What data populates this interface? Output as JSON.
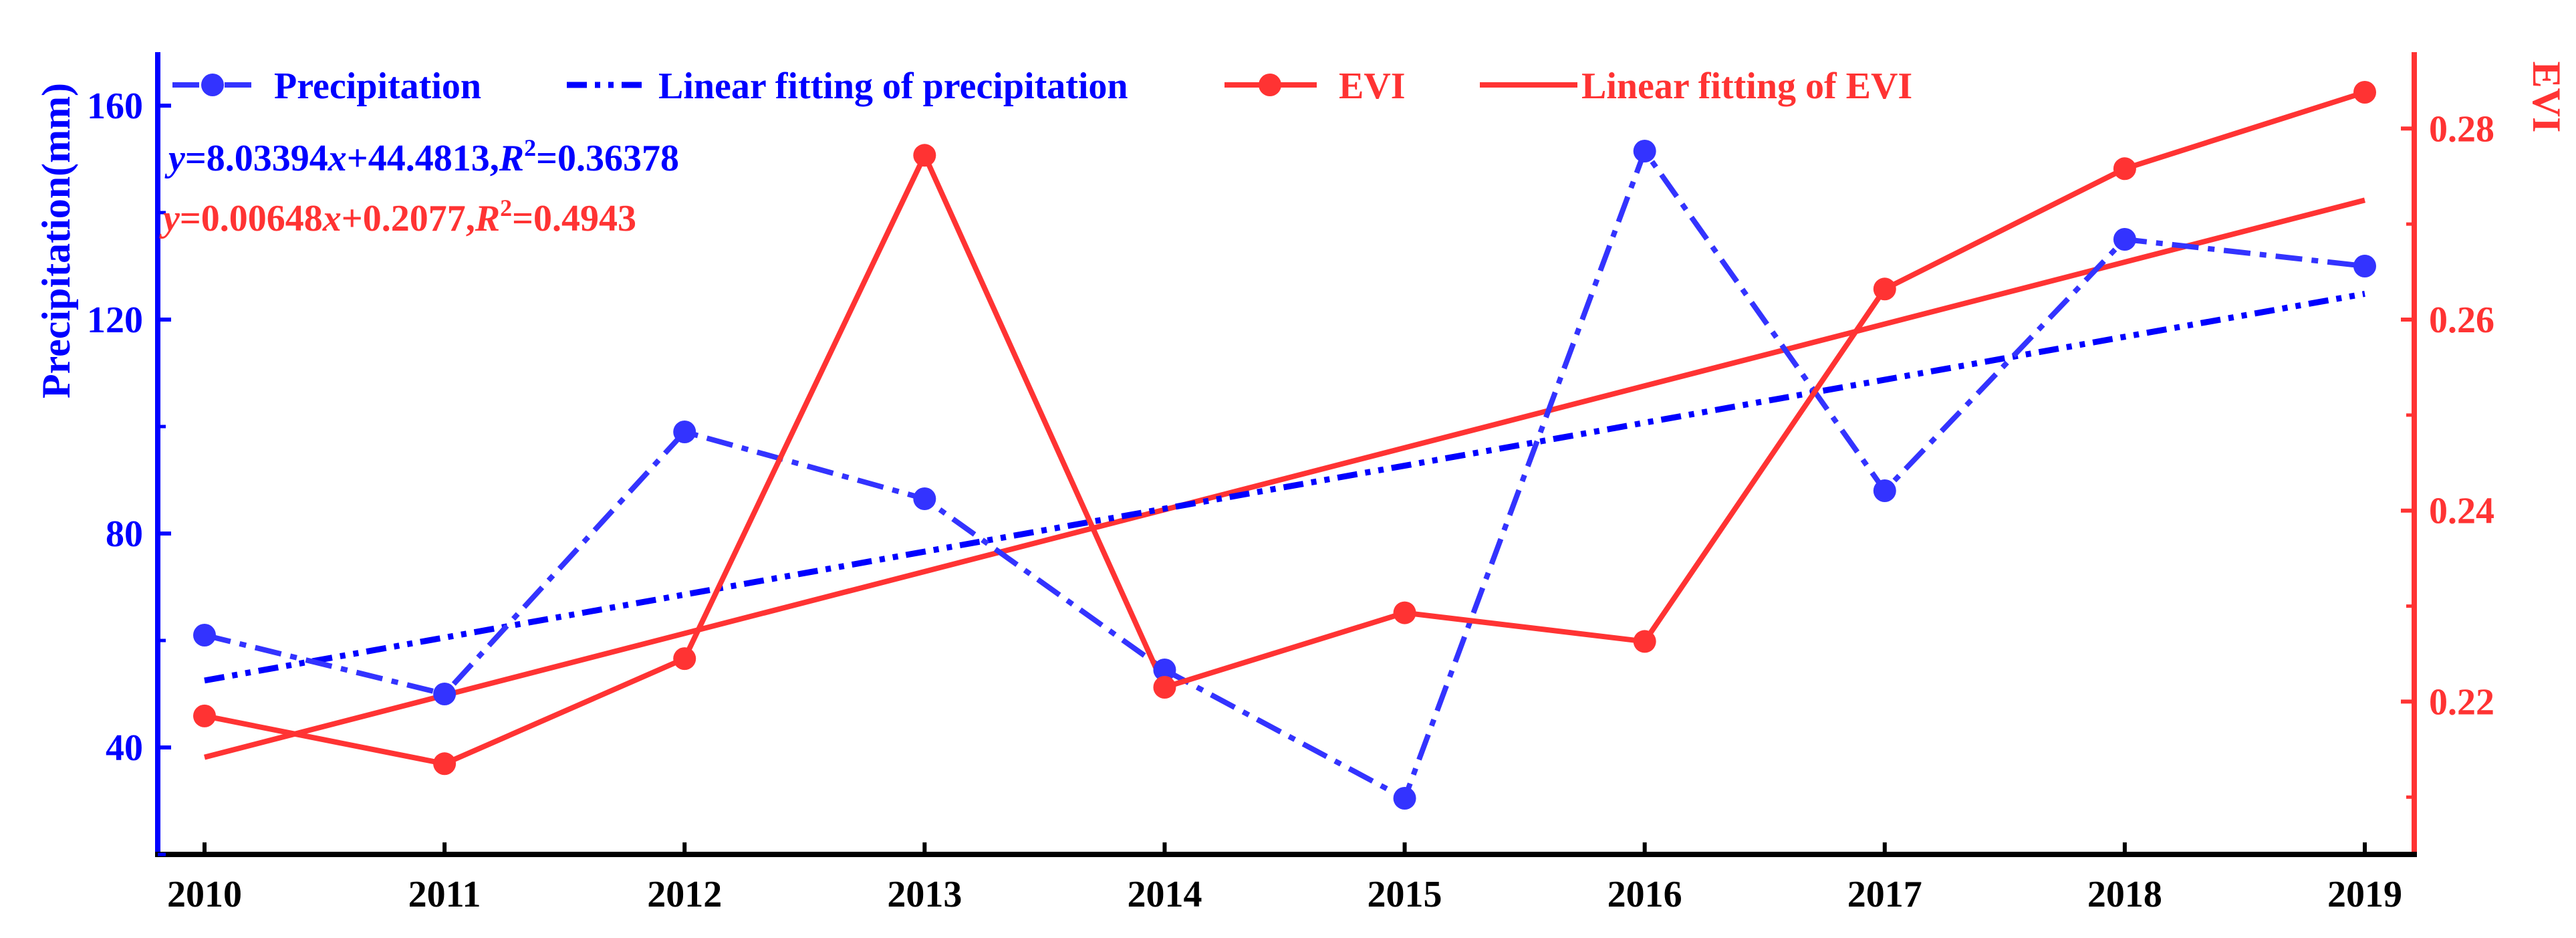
{
  "chart_data": {
    "type": "line",
    "x": [
      "2010",
      "2011",
      "2012",
      "2013",
      "2014",
      "2015",
      "2016",
      "2017",
      "2018",
      "2019"
    ],
    "left_axis": {
      "label": "Precipitation(mm)",
      "range": [
        20,
        170
      ],
      "ticks": [
        "40",
        "80",
        "120",
        "160"
      ],
      "color": "#0000ff"
    },
    "right_axis": {
      "label": "EVI",
      "range": [
        0.204,
        0.288
      ],
      "ticks": [
        "0.22",
        "0.24",
        "0.26",
        "0.28"
      ],
      "color": "#ff3333"
    },
    "series": [
      {
        "name": "Precipitation",
        "axis": "left",
        "values": [
          61,
          50,
          99,
          86.5,
          54.5,
          30.5,
          151.5,
          88,
          135,
          130
        ],
        "color": "#3333ff",
        "style": "dash-dot",
        "markers": true
      },
      {
        "name": "Linear fitting of precipitation",
        "axis": "left",
        "slope": 8.03394,
        "intercept": 44.4813,
        "color": "#0000ff",
        "style": "dash-dot-dot",
        "markers": false
      },
      {
        "name": "EVI",
        "axis": "right",
        "values": [
          0.2185,
          0.2135,
          0.2245,
          0.2772,
          0.2215,
          0.2293,
          0.2263,
          0.2632,
          0.2758,
          0.2838
        ],
        "color": "#ff3333",
        "style": "solid",
        "markers": true
      },
      {
        "name": "Linear fitting of EVI",
        "axis": "right",
        "slope": 0.00648,
        "intercept": 0.2077,
        "color": "#ff3333",
        "style": "solid",
        "markers": false
      }
    ],
    "legend": [
      "Precipitation",
      "Linear fitting of precipitation",
      "EVI",
      "Linear fitting of EVI"
    ],
    "annotations": {
      "precip_eq": {
        "y": "y",
        "eq": "=8.03394",
        "x": "x",
        "rest": "+44.4813,",
        "r": "R",
        "two": "2",
        "val": "=0.36378"
      },
      "evi_eq": {
        "y": "y",
        "eq": "=0.00648",
        "x": "x",
        "rest": "+0.2077,",
        "r": "R",
        "two": "2",
        "val": "=0.4943"
      }
    },
    "legend_placement": "top",
    "grid": false
  }
}
